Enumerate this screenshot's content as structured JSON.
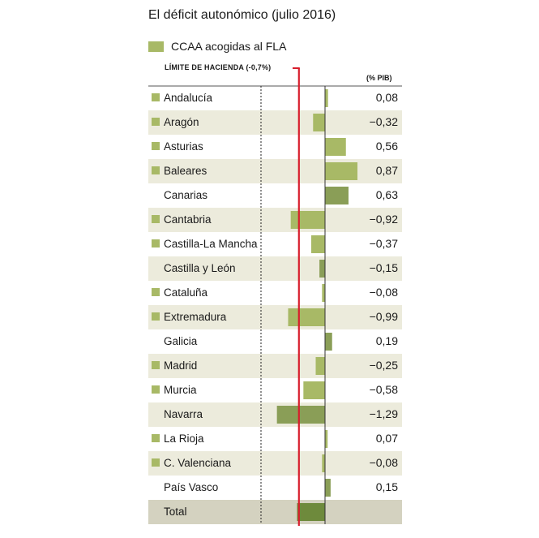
{
  "colors": {
    "fla_bar": "#a8b966",
    "non_fla_bar": "#8a9e57",
    "total_bar": "#6e8a3c",
    "limit_line": "#d81e2c",
    "band": "#ecebdc",
    "total_band": "#d4d2c0",
    "axis": "#333333"
  },
  "chart_data": {
    "type": "bar",
    "orientation": "horizontal",
    "title": "El déficit autonómico (julio 2016)",
    "legend": {
      "label": "CCAA acogidas al FLA",
      "placement": "top-left"
    },
    "unit": "(% PIB)",
    "reference_line": {
      "label": "LÍMITE DE HACIENDA (-0,7%)",
      "value": -0.7
    },
    "xlim": [
      -1.45,
      1.0
    ],
    "categories": [
      {
        "name": "Andalucía",
        "value": 0.08,
        "label": "0,08",
        "fla": true
      },
      {
        "name": "Aragón",
        "value": -0.32,
        "label": "−0,32",
        "fla": true
      },
      {
        "name": "Asturias",
        "value": 0.56,
        "label": "0,56",
        "fla": true
      },
      {
        "name": "Baleares",
        "value": 0.87,
        "label": "0,87",
        "fla": true
      },
      {
        "name": "Canarias",
        "value": 0.63,
        "label": "0,63",
        "fla": false
      },
      {
        "name": "Cantabria",
        "value": -0.92,
        "label": "−0,92",
        "fla": true
      },
      {
        "name": "Castilla-La Mancha",
        "value": -0.37,
        "label": "−0,37",
        "fla": true
      },
      {
        "name": "Castilla y León",
        "value": -0.15,
        "label": "−0,15",
        "fla": false
      },
      {
        "name": "Cataluña",
        "value": -0.08,
        "label": "−0,08",
        "fla": true
      },
      {
        "name": "Extremadura",
        "value": -0.99,
        "label": "−0,99",
        "fla": true
      },
      {
        "name": "Galicia",
        "value": 0.19,
        "label": "0,19",
        "fla": false
      },
      {
        "name": "Madrid",
        "value": -0.25,
        "label": "−0,25",
        "fla": true
      },
      {
        "name": "Murcia",
        "value": -0.58,
        "label": "−0,58",
        "fla": true
      },
      {
        "name": "Navarra",
        "value": -1.29,
        "label": "−1,29",
        "fla": false
      },
      {
        "name": "La Rioja",
        "value": 0.07,
        "label": "0,07",
        "fla": true
      },
      {
        "name": "C. Valenciana",
        "value": -0.08,
        "label": "−0,08",
        "fla": true
      },
      {
        "name": "País Vasco",
        "value": 0.15,
        "label": "0,15",
        "fla": false
      }
    ],
    "total": {
      "name": "Total",
      "value": -0.75,
      "label": ""
    }
  }
}
